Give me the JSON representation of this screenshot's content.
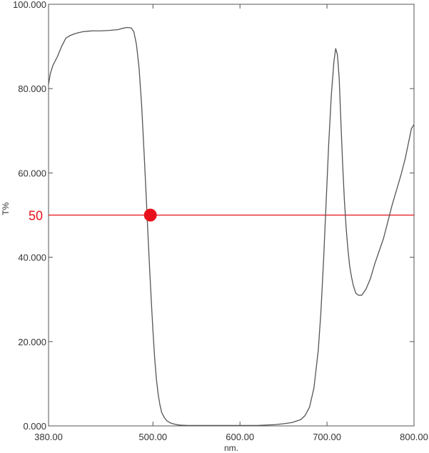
{
  "chart_data": {
    "type": "line",
    "xlabel": "nm.",
    "ylabel": "T%",
    "xlim": [
      380,
      800
    ],
    "ylim": [
      0,
      100
    ],
    "x_ticks": [
      380,
      500,
      600,
      700,
      800
    ],
    "x_tick_labels": [
      "380.00",
      "500.00",
      "600.00",
      "700.00",
      "800.00"
    ],
    "y_ticks": [
      0,
      20,
      40,
      60,
      80,
      100
    ],
    "y_tick_labels": [
      "0.000",
      "20.000",
      "40.000",
      "60.000",
      "80.000",
      "100.000"
    ],
    "grid": false,
    "colors": {
      "series": "#555555",
      "reference": "#e8111b",
      "axis": "#555555"
    },
    "reference_line": {
      "y": 50,
      "label": "50"
    },
    "marker": {
      "x": 497,
      "y": 50
    },
    "series": [
      {
        "x": [
          380,
          382,
          385,
          390,
          395,
          400,
          405,
          410,
          415,
          420,
          425,
          430,
          440,
          450,
          460,
          465,
          470,
          475,
          478,
          481,
          484,
          487,
          490,
          492,
          494,
          496,
          498,
          500,
          502,
          504,
          506,
          508,
          510,
          513,
          516,
          520,
          525,
          530,
          540,
          550,
          560,
          580,
          600,
          620,
          640,
          650,
          660,
          670,
          675,
          680,
          685,
          690,
          693,
          696,
          699,
          702,
          705,
          708,
          710,
          712,
          714,
          716,
          718,
          720,
          722,
          724,
          726,
          728,
          730,
          733,
          736,
          740,
          745,
          750,
          755,
          760,
          765,
          770,
          775,
          780,
          785,
          790,
          794,
          797,
          800
        ],
        "values": [
          81.0,
          83.5,
          85.5,
          87.5,
          90.0,
          92.0,
          92.6,
          93.0,
          93.3,
          93.5,
          93.6,
          93.7,
          93.7,
          93.8,
          94.0,
          94.3,
          94.5,
          94.4,
          93.5,
          90.5,
          85.0,
          76.0,
          64.0,
          55.5,
          46.5,
          38.0,
          30.0,
          22.5,
          16.0,
          11.0,
          7.5,
          5.0,
          3.2,
          2.0,
          1.2,
          0.7,
          0.4,
          0.2,
          0.1,
          0.1,
          0.1,
          0.1,
          0.1,
          0.1,
          0.3,
          0.5,
          0.8,
          1.5,
          2.5,
          4.5,
          9.0,
          18.0,
          27.0,
          39.0,
          53.0,
          67.0,
          78.5,
          86.5,
          89.5,
          88.0,
          82.5,
          72.0,
          62.0,
          53.5,
          47.0,
          42.0,
          38.0,
          35.5,
          33.5,
          31.5,
          31.0,
          31.0,
          32.5,
          35.0,
          38.5,
          41.5,
          44.5,
          48.5,
          52.5,
          56.0,
          59.5,
          63.5,
          67.5,
          70.5,
          71.5
        ]
      }
    ]
  }
}
